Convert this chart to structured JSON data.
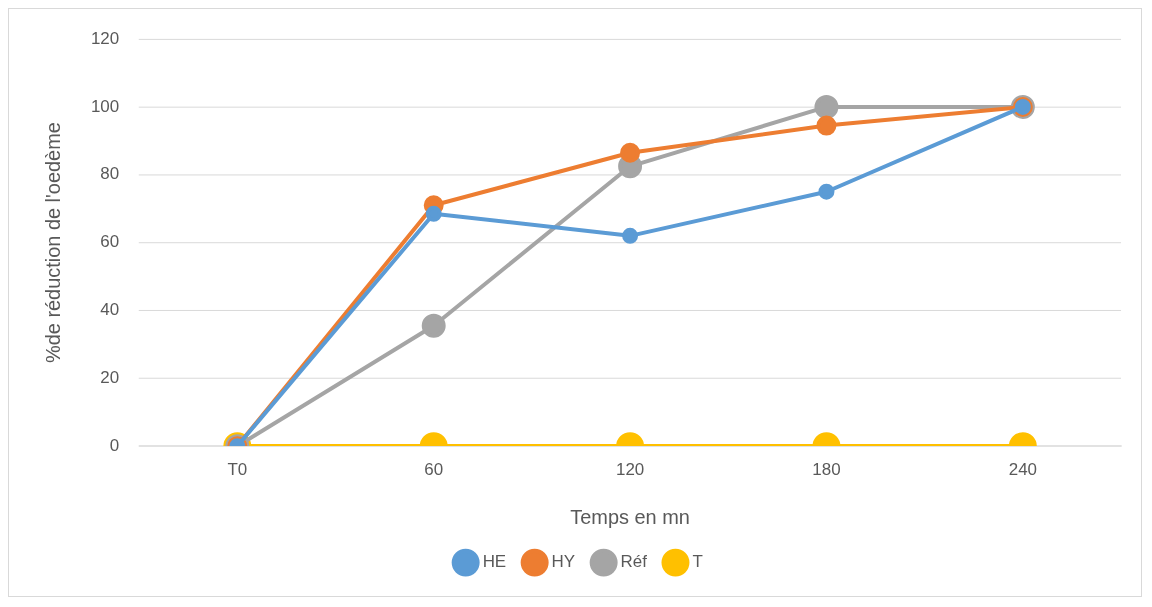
{
  "chart_data": {
    "type": "line",
    "xlabel": "Temps en mn",
    "ylabel": "%de réduction de l'oedème",
    "categories": [
      "T0",
      "60",
      "120",
      "180",
      "240"
    ],
    "series": [
      {
        "name": "HE",
        "color": "#5b9bd5",
        "values": [
          0,
          68.5,
          62,
          75,
          100
        ]
      },
      {
        "name": "HY",
        "color": "#ed7d31",
        "values": [
          0,
          71,
          86.5,
          94.5,
          100
        ]
      },
      {
        "name": "Réf",
        "color": "#a5a5a5",
        "values": [
          0,
          35.5,
          82.5,
          100,
          100
        ]
      },
      {
        "name": "T",
        "color": "#ffc000",
        "values": [
          0,
          0,
          0,
          0,
          0
        ]
      }
    ],
    "ylim": [
      0,
      120
    ],
    "yticks": [
      0,
      20,
      40,
      60,
      80,
      100,
      120
    ],
    "grid": "y",
    "legend": "bottom",
    "marker": "circle",
    "line_style": "solid"
  }
}
